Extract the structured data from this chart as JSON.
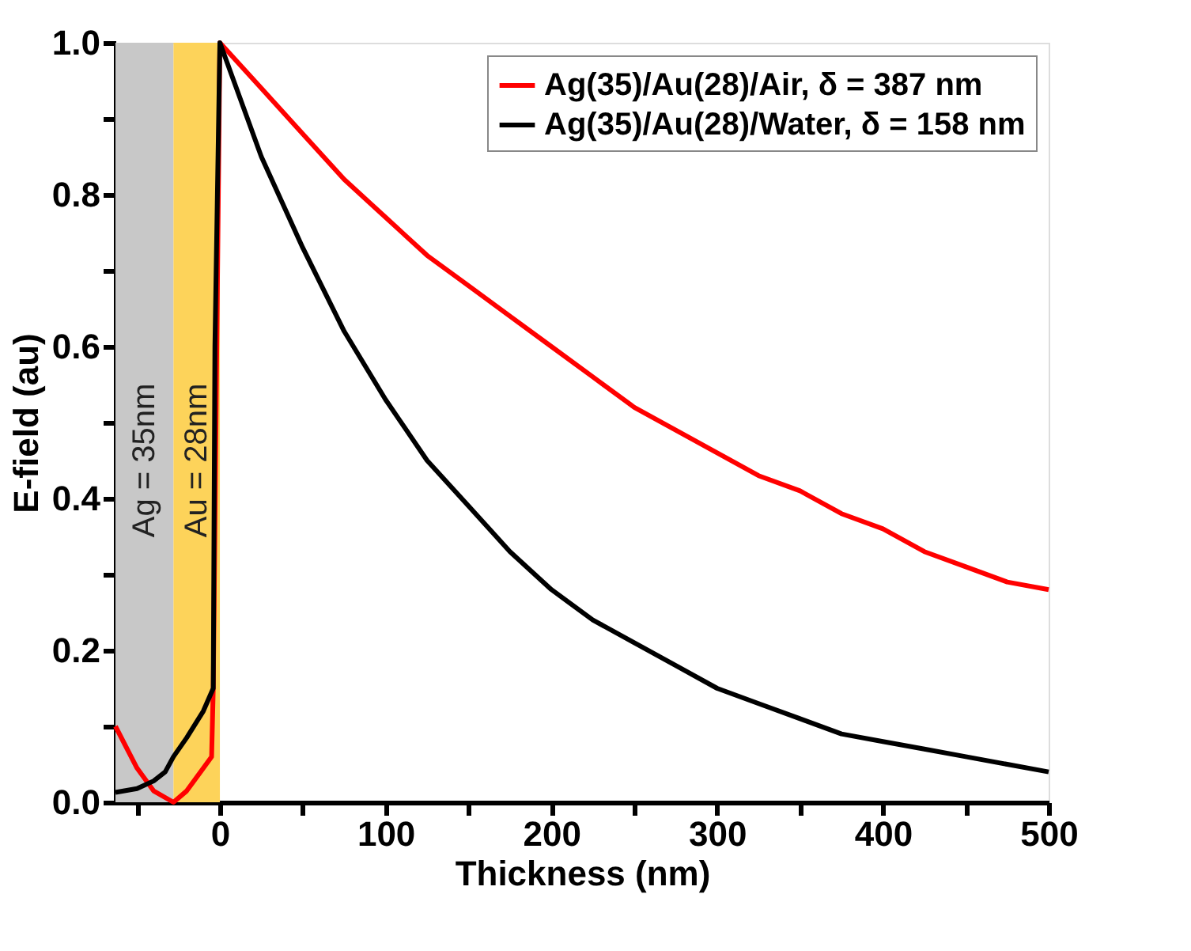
{
  "chart_data": {
    "type": "line",
    "xlabel": "Thickness (nm)",
    "ylabel": "E-field (au)",
    "xlim": [
      -63,
      500
    ],
    "ylim": [
      0,
      1.0
    ],
    "xticks": [
      {
        "value": -50,
        "label": null
      },
      0,
      {
        "value": 50,
        "label": null
      },
      100,
      {
        "value": 150,
        "label": null
      },
      200,
      {
        "value": 250,
        "label": null
      },
      300,
      {
        "value": 350,
        "label": null
      },
      400,
      {
        "value": 450,
        "label": null
      },
      500
    ],
    "yticks": [
      {
        "value": 0,
        "label": "0.0"
      },
      {
        "value": 0.1,
        "label": null
      },
      0.2,
      {
        "value": 0.3,
        "label": null
      },
      0.4,
      {
        "value": 0.5,
        "label": null
      },
      0.6,
      {
        "value": 0.7,
        "label": null
      },
      0.8,
      {
        "value": 0.9,
        "label": null
      },
      {
        "value": 1.0,
        "label": "1.0"
      }
    ],
    "grid": false,
    "legend": "top right",
    "line_style": "solid",
    "marker": "none",
    "bands": [
      {
        "axis": "x",
        "from": -63,
        "to": -28,
        "label": "Ag = 35nm",
        "color": "#c8c8c8"
      },
      {
        "axis": "x",
        "from": -28,
        "to": 0,
        "label": "Au = 28nm",
        "color": "#fdd35a"
      }
    ],
    "series": [
      {
        "name": "Ag(35)/Au(28)/Air,      δ = 387 nm",
        "color": "#ff0000",
        "x": [
          -63,
          -50,
          -40,
          -28,
          -20,
          -5,
          -4,
          0,
          25,
          50,
          75,
          100,
          125,
          150,
          175,
          200,
          225,
          250,
          275,
          300,
          325,
          350,
          375,
          400,
          425,
          450,
          475,
          500
        ],
        "values": [
          0.1,
          0.045,
          0.015,
          0.0,
          0.015,
          0.06,
          0.15,
          1.0,
          0.94,
          0.88,
          0.82,
          0.77,
          0.72,
          0.68,
          0.64,
          0.6,
          0.56,
          0.52,
          0.49,
          0.46,
          0.43,
          0.41,
          0.38,
          0.36,
          0.33,
          0.31,
          0.29,
          0.28
        ]
      },
      {
        "name": "Ag(35)/Au(28)/Water, δ = 158 nm",
        "color": "#000000",
        "x": [
          -63,
          -50,
          -40,
          -33,
          -28,
          -20,
          -10,
          -4,
          -3,
          0,
          25,
          50,
          75,
          100,
          125,
          150,
          175,
          200,
          225,
          250,
          275,
          300,
          325,
          350,
          375,
          400,
          425,
          450,
          475,
          500
        ],
        "values": [
          0.013,
          0.018,
          0.028,
          0.04,
          0.06,
          0.085,
          0.12,
          0.15,
          0.6,
          1.0,
          0.85,
          0.73,
          0.62,
          0.53,
          0.45,
          0.39,
          0.33,
          0.28,
          0.24,
          0.21,
          0.18,
          0.15,
          0.13,
          0.11,
          0.09,
          0.08,
          0.07,
          0.06,
          0.05,
          0.04
        ]
      }
    ]
  }
}
